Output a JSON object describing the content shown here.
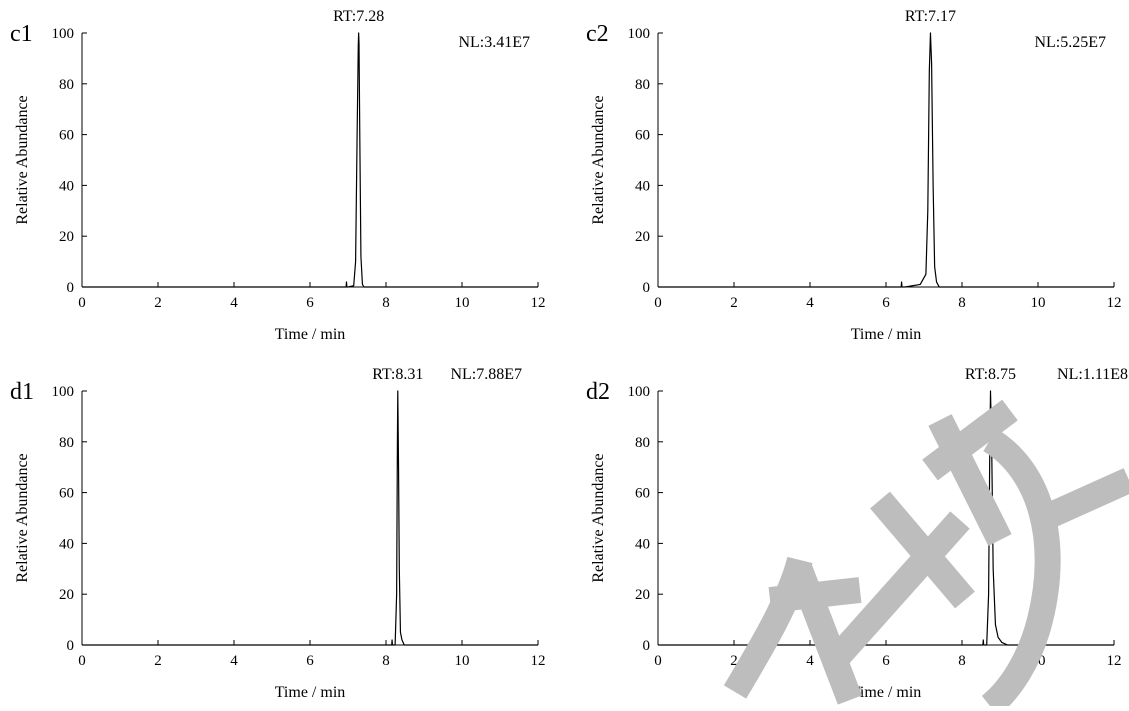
{
  "chart_data": [
    {
      "type": "line",
      "panel_label": "c1",
      "xlabel": "Time / min",
      "ylabel": "Relative Abundance",
      "xlim": [
        0,
        12
      ],
      "ylim": [
        0,
        100
      ],
      "x_ticks": [
        "0",
        "2",
        "4",
        "6",
        "8",
        "10",
        "12"
      ],
      "y_ticks": [
        "0",
        "20",
        "40",
        "60",
        "80",
        "100"
      ],
      "annotations": {
        "rt": "RT:7.28",
        "nl": "NL:3.41E7"
      },
      "grid": false,
      "series": [
        {
          "x": [
            0,
            6.95,
            6.96,
            6.97,
            7.0,
            7.15,
            7.2,
            7.24,
            7.27,
            7.28,
            7.29,
            7.31,
            7.34,
            7.38,
            7.42,
            12
          ],
          "y": [
            0,
            0,
            2,
            0,
            0,
            0.5,
            10,
            60,
            95,
            100,
            96,
            60,
            12,
            1,
            0,
            0
          ]
        }
      ]
    },
    {
      "type": "line",
      "panel_label": "c2",
      "xlabel": "Time / min",
      "ylabel": "Relative Abundance",
      "xlim": [
        0,
        12
      ],
      "ylim": [
        0,
        100
      ],
      "x_ticks": [
        "0",
        "2",
        "4",
        "6",
        "8",
        "10",
        "12"
      ],
      "y_ticks": [
        "0",
        "20",
        "40",
        "60",
        "80",
        "100"
      ],
      "annotations": {
        "rt": "RT:7.17",
        "nl": "NL:5.25E7"
      },
      "grid": false,
      "series": [
        {
          "x": [
            0,
            6.4,
            6.41,
            6.42,
            6.5,
            6.9,
            7.05,
            7.1,
            7.14,
            7.17,
            7.2,
            7.24,
            7.28,
            7.33,
            7.4,
            12
          ],
          "y": [
            0,
            0,
            2,
            0,
            0,
            1,
            5,
            30,
            85,
            100,
            88,
            40,
            8,
            2,
            0,
            0
          ]
        }
      ]
    },
    {
      "type": "line",
      "panel_label": "d1",
      "xlabel": "Time / min",
      "ylabel": "Relative Abundance",
      "xlim": [
        0,
        12
      ],
      "ylim": [
        0,
        100
      ],
      "x_ticks": [
        "0",
        "2",
        "4",
        "6",
        "8",
        "10",
        "12"
      ],
      "y_ticks": [
        "0",
        "20",
        "40",
        "60",
        "80",
        "100"
      ],
      "annotations": {
        "rt": "RT:8.31",
        "nl": "NL:7.88E7"
      },
      "grid": false,
      "series": [
        {
          "x": [
            0,
            8.15,
            8.16,
            8.17,
            8.24,
            8.28,
            8.3,
            8.31,
            8.33,
            8.35,
            8.38,
            8.42,
            8.48,
            12
          ],
          "y": [
            0,
            0,
            2,
            0,
            0,
            20,
            80,
            100,
            70,
            30,
            5,
            2,
            0,
            0
          ]
        }
      ]
    },
    {
      "type": "line",
      "panel_label": "d2",
      "xlabel": "Time / min",
      "ylabel": "Relative Abundance",
      "xlim": [
        0,
        12
      ],
      "ylim": [
        0,
        100
      ],
      "x_ticks": [
        "0",
        "2",
        "4",
        "6",
        "8",
        "10",
        "12"
      ],
      "y_ticks": [
        "0",
        "20",
        "40",
        "60",
        "80",
        "100"
      ],
      "annotations": {
        "rt": "RT:8.75",
        "nl": "NL:1.11E8"
      },
      "grid": false,
      "series": [
        {
          "x": [
            0,
            8.55,
            8.56,
            8.57,
            8.65,
            8.7,
            8.73,
            8.75,
            8.78,
            8.82,
            8.88,
            8.95,
            9.05,
            9.2,
            12
          ],
          "y": [
            0,
            0,
            2,
            0,
            0,
            20,
            75,
            100,
            80,
            30,
            8,
            3,
            1,
            0,
            0
          ]
        }
      ]
    }
  ],
  "watermark": {
    "description": "gray calligraphy watermark",
    "color": "#bdbdbd"
  },
  "colors": {
    "line": "#000000",
    "axis": "#000000",
    "background": "#ffffff"
  }
}
